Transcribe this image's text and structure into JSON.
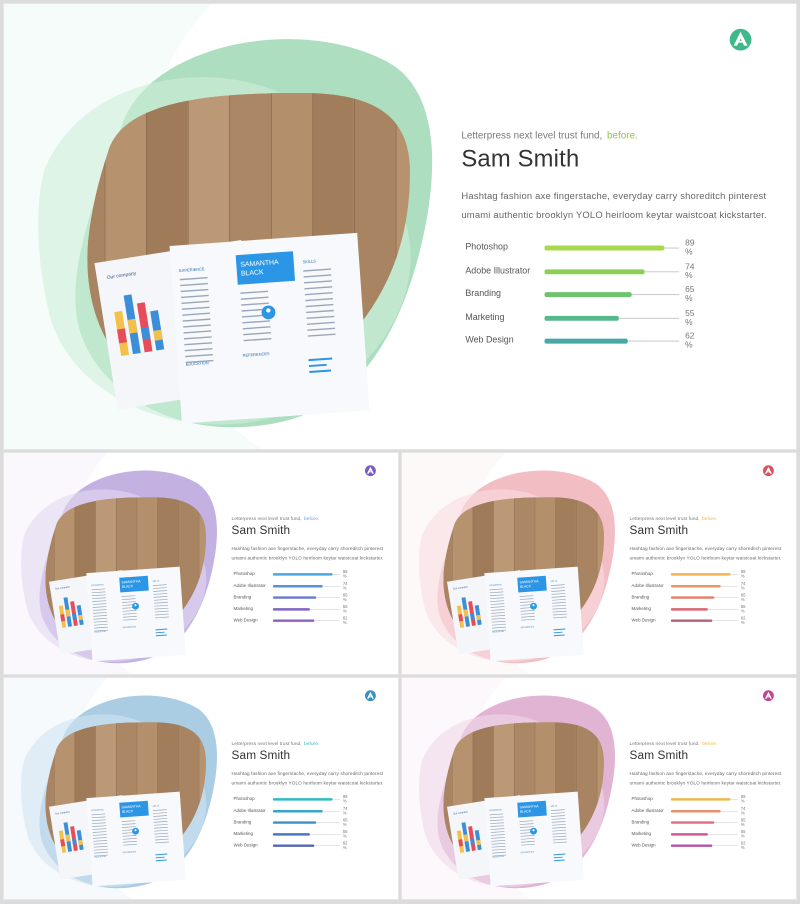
{
  "slides": [
    {
      "tagline": "Letterpress next level trust fund,",
      "tagline_accent": "before.",
      "title": "Sam Smith",
      "description": "Hashtag fashion axe fingerstache, everyday carry shoreditch pinterest umami authentic brooklyn YOLO heirloom keytar waistcoat kickstarter.",
      "theme": {
        "blob_main": "#9ed8b4",
        "blob_alt": "#cfeedb",
        "accent": "#8cc63f",
        "logo": "#3fb98a"
      },
      "skills": [
        {
          "name": "Photoshop",
          "value": 89,
          "value_label": "89",
          "unit": "%",
          "color": "#a7d94a"
        },
        {
          "name": "Adobe Illustrator",
          "value": 74,
          "value_label": "74",
          "unit": "%",
          "color": "#8bcf55"
        },
        {
          "name": "Branding",
          "value": 65,
          "value_label": "65",
          "unit": "%",
          "color": "#6cc46e"
        },
        {
          "name": "Marketing",
          "value": 55,
          "value_label": "55",
          "unit": "%",
          "color": "#55b98a"
        },
        {
          "name": "Web Design",
          "value": 62,
          "value_label": "62",
          "unit": "%",
          "color": "#47a9a1"
        }
      ]
    },
    {
      "tagline": "Letterpress next level trust fund,",
      "tagline_accent": "before.",
      "title": "Sam Smith",
      "description": "Hashtag fashion axe fingerstache, everyday carry shoreditch pinterest umami authentic brooklyn YOLO heirloom keytar waistcoat kickstarter.",
      "theme": {
        "blob_main": "#b9a4dc",
        "blob_alt": "#e3d9f2",
        "accent": "#6fa0e0",
        "logo": "#7a5cc4"
      },
      "skills": [
        {
          "name": "Photoshop",
          "value": 89,
          "value_label": "89",
          "unit": "%",
          "color": "#4aa8e0"
        },
        {
          "name": "Adobe Illustrator",
          "value": 74,
          "value_label": "74",
          "unit": "%",
          "color": "#5a8fdc"
        },
        {
          "name": "Branding",
          "value": 65,
          "value_label": "65",
          "unit": "%",
          "color": "#6a78d4"
        },
        {
          "name": "Marketing",
          "value": 55,
          "value_label": "55",
          "unit": "%",
          "color": "#7d66c8"
        },
        {
          "name": "Web Design",
          "value": 62,
          "value_label": "62",
          "unit": "%",
          "color": "#9060bd"
        }
      ]
    },
    {
      "tagline": "Letterpress next level trust fund,",
      "tagline_accent": "before.",
      "title": "Sam Smith",
      "description": "Hashtag fashion axe fingerstache, everyday carry shoreditch pinterest umami authentic brooklyn YOLO heirloom keytar waistcoat kickstarter.",
      "theme": {
        "blob_main": "#f0b3b8",
        "blob_alt": "#f8dcdf",
        "accent": "#f0b44a",
        "logo": "#d9505f"
      },
      "skills": [
        {
          "name": "Photoshop",
          "value": 89,
          "value_label": "89",
          "unit": "%",
          "color": "#f2b455"
        },
        {
          "name": "Adobe Illustrator",
          "value": 74,
          "value_label": "74",
          "unit": "%",
          "color": "#ee9560"
        },
        {
          "name": "Branding",
          "value": 65,
          "value_label": "65",
          "unit": "%",
          "color": "#e87b66"
        },
        {
          "name": "Marketing",
          "value": 55,
          "value_label": "55",
          "unit": "%",
          "color": "#dc6670"
        },
        {
          "name": "Web Design",
          "value": 62,
          "value_label": "62",
          "unit": "%",
          "color": "#b2607c"
        }
      ]
    },
    {
      "tagline": "Letterpress next level trust fund,",
      "tagline_accent": "before.",
      "title": "Sam Smith",
      "description": "Hashtag fashion axe fingerstache, everyday carry shoreditch pinterest umami authentic brooklyn YOLO heirloom keytar waistcoat kickstarter.",
      "theme": {
        "blob_main": "#9cc4df",
        "blob_alt": "#d2e5f1",
        "accent": "#3fb8c8",
        "logo": "#3a8fc4"
      },
      "skills": [
        {
          "name": "Photoshop",
          "value": 89,
          "value_label": "89",
          "unit": "%",
          "color": "#2fbcc4"
        },
        {
          "name": "Adobe Illustrator",
          "value": 74,
          "value_label": "74",
          "unit": "%",
          "color": "#36a6c6"
        },
        {
          "name": "Branding",
          "value": 65,
          "value_label": "65",
          "unit": "%",
          "color": "#3e8fc6"
        },
        {
          "name": "Marketing",
          "value": 55,
          "value_label": "55",
          "unit": "%",
          "color": "#4879c0"
        },
        {
          "name": "Web Design",
          "value": 62,
          "value_label": "62",
          "unit": "%",
          "color": "#5566b6"
        }
      ]
    },
    {
      "tagline": "Letterpress next level trust fund,",
      "tagline_accent": "before.",
      "title": "Sam Smith",
      "description": "Hashtag fashion axe fingerstache, everyday carry shoreditch pinterest umami authentic brooklyn YOLO heirloom keytar waistcoat kickstarter.",
      "theme": {
        "blob_main": "#dca7cd",
        "blob_alt": "#f0d9ea",
        "accent": "#e8b84a",
        "logo": "#c0458f"
      },
      "skills": [
        {
          "name": "Photoshop",
          "value": 89,
          "value_label": "89",
          "unit": "%",
          "color": "#ecb94e"
        },
        {
          "name": "Adobe Illustrator",
          "value": 74,
          "value_label": "74",
          "unit": "%",
          "color": "#e7906a"
        },
        {
          "name": "Branding",
          "value": 65,
          "value_label": "65",
          "unit": "%",
          "color": "#dd6f82"
        },
        {
          "name": "Marketing",
          "value": 55,
          "value_label": "55",
          "unit": "%",
          "color": "#cf5a99"
        },
        {
          "name": "Web Design",
          "value": 62,
          "value_label": "62",
          "unit": "%",
          "color": "#b651a8"
        }
      ]
    }
  ],
  "card": {
    "header_name": "SAMANTHA",
    "header_surname": "BLACK",
    "section_experience": "EXPERIENCE",
    "section_education": "EDUCATION",
    "section_references": "REFERENCES",
    "section_skills": "SKILLS",
    "doc_label": "Our company"
  }
}
